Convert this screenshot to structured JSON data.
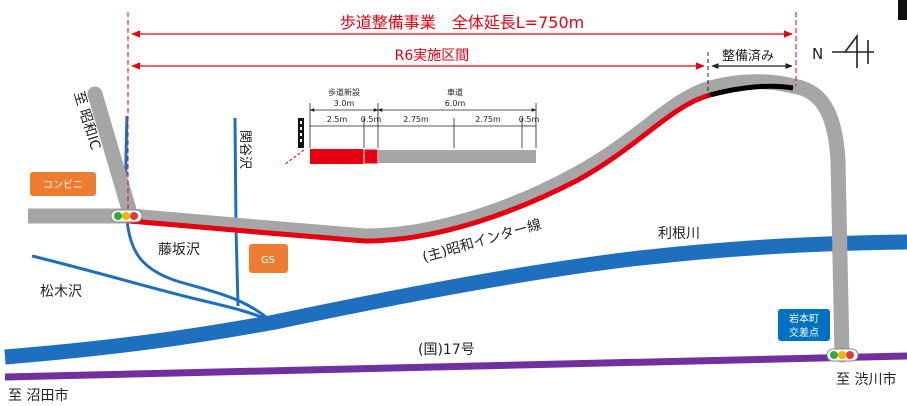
{
  "header": {
    "project_title": "歩道整備事業　全体延長L=750m",
    "r6_section": "R6実施区間",
    "completed_section": "整備済み",
    "north_symbol": "N"
  },
  "cross_section": {
    "sidewalk_new_label": "歩道新設",
    "sidewalk_new_width": "3.0m",
    "roadway_label": "車道",
    "roadway_width": "6.0m",
    "dims": [
      "2.5m",
      "0.5m",
      "2.75m",
      "2.75m",
      "0.5m"
    ]
  },
  "places": {
    "showa_ic": "至 昭和IC",
    "kanyazawa": "関谷沢",
    "konbini": "コンビニ",
    "fujisakazawa": "藤坂沢",
    "gs": "GS",
    "route_name": "(主)昭和インター線",
    "tonegawa": "利根川",
    "matsukizawa": "松木沢",
    "national_route": "(国)17号",
    "iwamoto_1": "岩本町",
    "iwamoto_2": "交差点",
    "shibukawa": "至 渋川市",
    "numata": "至 沼田市"
  },
  "colors": {
    "project_red": "#e60012",
    "road_gray": "#a6a6a6",
    "completed_black": "#000000",
    "river_blue": "#1f6fbf",
    "national_route_purple": "#7030a0",
    "facility_orange": "#ed7d31",
    "intersection_blue": "#0070c0"
  }
}
